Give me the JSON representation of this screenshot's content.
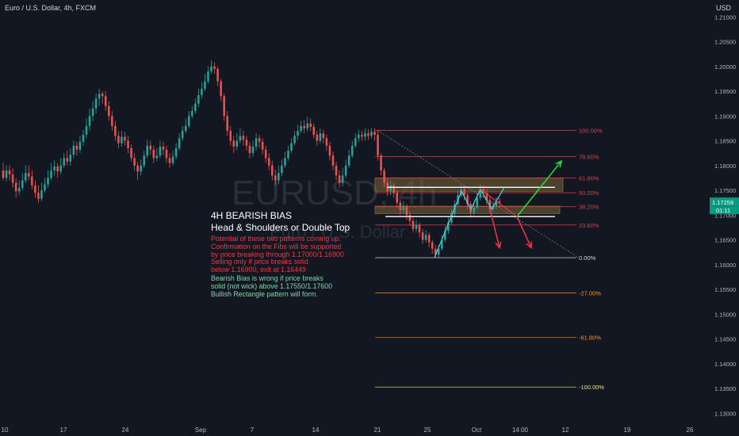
{
  "header": {
    "title": "Euro / U.S. Dollar, 4h, FXCM",
    "currency": "USD"
  },
  "watermark": {
    "symbol": "EURUSD, 4h",
    "name": "Euro / U.S. Dollar"
  },
  "annotations": {
    "title1": "4H BEARISH BIAS",
    "title2": "Head & Shoulders or Double Top",
    "red_lines": [
      "Potential of these two patterns coming up.",
      "Confirmation on the Fibs will be supported",
      "by price breaking through 1.17000/1.16900",
      "Selling only if price breaks solid",
      "below 1.16900, exit at 1.16449"
    ],
    "green_lines": [
      "Bearish Bias is wrong if price breaks",
      "solid (not wick) above 1.17550/1.17600",
      "Bullish Rectangle pattern will form."
    ]
  },
  "chart_data": {
    "type": "candlestick",
    "title": "Euro / U.S. Dollar, 4h, FXCM",
    "y_axis": {
      "ticks": [
        1.21,
        1.205,
        1.2,
        1.195,
        1.19,
        1.185,
        1.18,
        1.175,
        1.17,
        1.165,
        1.16,
        1.155,
        1.15,
        1.145,
        1.14,
        1.135,
        1.13
      ],
      "tick_labels": [
        "1.21000",
        "1.20500",
        "1.20000",
        "1.19500",
        "1.19000",
        "1.18500",
        "1.18000",
        "1.17500",
        "1.17000",
        "1.16500",
        "1.16000",
        "1.15500",
        "1.15000",
        "1.14500",
        "1.14000",
        "1.13500",
        "1.13000"
      ],
      "range": [
        1.1283,
        1.2134
      ]
    },
    "x_axis": {
      "tick_labels": [
        "10",
        "17",
        "24",
        "Sep",
        "7",
        "14",
        "21",
        "25",
        "Oct",
        "14:00",
        "12",
        "19",
        "26"
      ]
    },
    "last_price": "1.17259",
    "countdown": "01:11",
    "fib_levels": [
      {
        "label": "100.00%",
        "price": 1.1871,
        "color": "#f23645"
      },
      {
        "label": "78.60%",
        "price": 1.1818,
        "color": "#f23645"
      },
      {
        "label": "61.80%",
        "price": 1.1775,
        "color": "#f23645"
      },
      {
        "label": "50.00%",
        "price": 1.1745,
        "color": "#f23645"
      },
      {
        "label": "38.20%",
        "price": 1.1717,
        "color": "#f23645"
      },
      {
        "label": "23.60%",
        "price": 1.168,
        "color": "#f23645"
      },
      {
        "label": "0.00%",
        "price": 1.1614,
        "color": "#d1d4dc"
      },
      {
        "label": "-27.00%",
        "price": 1.1543,
        "color": "#f7931a"
      },
      {
        "label": "-61.80%",
        "price": 1.1453,
        "color": "#f7931a"
      },
      {
        "label": "-100.00%",
        "price": 1.1353,
        "color": "#e8e37a"
      }
    ],
    "support_resistance": [
      1.1756,
      1.1697
    ],
    "zones": [
      {
        "from": 1.1748,
        "to": 1.1775
      },
      {
        "from": 1.1703,
        "to": 1.1718
      }
    ],
    "candles": [
      [
        1.179,
        1.1775,
        1.1805,
        1.177
      ],
      [
        1.1775,
        1.179,
        1.18,
        1.1768
      ],
      [
        1.179,
        1.1782,
        1.18,
        1.177
      ],
      [
        1.1782,
        1.1765,
        1.1795,
        1.1755
      ],
      [
        1.1765,
        1.1748,
        1.1775,
        1.1735
      ],
      [
        1.1748,
        1.1755,
        1.177,
        1.174
      ],
      [
        1.1755,
        1.177,
        1.1785,
        1.175
      ],
      [
        1.177,
        1.1785,
        1.18,
        1.1765
      ],
      [
        1.1785,
        1.1778,
        1.18,
        1.177
      ],
      [
        1.1778,
        1.176,
        1.179,
        1.1752
      ],
      [
        1.176,
        1.1745,
        1.177,
        1.1735
      ],
      [
        1.1745,
        1.1733,
        1.176,
        1.1725
      ],
      [
        1.1733,
        1.175,
        1.1765,
        1.1728
      ],
      [
        1.175,
        1.1762,
        1.1775,
        1.1745
      ],
      [
        1.1762,
        1.1775,
        1.179,
        1.1755
      ],
      [
        1.1775,
        1.179,
        1.1805,
        1.177
      ],
      [
        1.179,
        1.1798,
        1.181,
        1.178
      ],
      [
        1.1798,
        1.1788,
        1.1805,
        1.1775
      ],
      [
        1.1788,
        1.18,
        1.1815,
        1.1782
      ],
      [
        1.18,
        1.1815,
        1.1825,
        1.1795
      ],
      [
        1.1815,
        1.1808,
        1.183,
        1.18
      ],
      [
        1.1808,
        1.1822,
        1.1835,
        1.18
      ],
      [
        1.1822,
        1.184,
        1.185,
        1.1815
      ],
      [
        1.184,
        1.1832,
        1.1848,
        1.182
      ],
      [
        1.1832,
        1.1848,
        1.186,
        1.1825
      ],
      [
        1.1848,
        1.1862,
        1.1872,
        1.184
      ],
      [
        1.1862,
        1.188,
        1.1895,
        1.1855
      ],
      [
        1.188,
        1.19,
        1.1915,
        1.187
      ],
      [
        1.19,
        1.1915,
        1.193,
        1.189
      ],
      [
        1.1915,
        1.1935,
        1.1945,
        1.1905
      ],
      [
        1.1935,
        1.1945,
        1.1955,
        1.192
      ],
      [
        1.1945,
        1.194,
        1.195,
        1.1925
      ],
      [
        1.194,
        1.192,
        1.195,
        1.191
      ],
      [
        1.192,
        1.19,
        1.193,
        1.189
      ],
      [
        1.19,
        1.188,
        1.191,
        1.187
      ],
      [
        1.188,
        1.186,
        1.189,
        1.185
      ],
      [
        1.186,
        1.1845,
        1.187,
        1.1835
      ],
      [
        1.1845,
        1.1858,
        1.187,
        1.1838
      ],
      [
        1.1858,
        1.185,
        1.1868,
        1.184
      ],
      [
        1.185,
        1.1835,
        1.186,
        1.1825
      ],
      [
        1.1835,
        1.1815,
        1.1842,
        1.1808
      ],
      [
        1.1815,
        1.18,
        1.1825,
        1.179
      ],
      [
        1.18,
        1.1788,
        1.1808,
        1.177
      ],
      [
        1.1788,
        1.18,
        1.1812,
        1.178
      ],
      [
        1.18,
        1.182,
        1.183,
        1.1795
      ],
      [
        1.182,
        1.184,
        1.1852,
        1.1815
      ],
      [
        1.184,
        1.1832,
        1.185,
        1.1822
      ],
      [
        1.1832,
        1.1815,
        1.184,
        1.1805
      ],
      [
        1.1815,
        1.182,
        1.1835,
        1.1808
      ],
      [
        1.182,
        1.1838,
        1.185,
        1.1815
      ],
      [
        1.1838,
        1.1832,
        1.1848,
        1.182
      ],
      [
        1.1832,
        1.1815,
        1.184,
        1.1805
      ],
      [
        1.1815,
        1.1805,
        1.1825,
        1.1795
      ],
      [
        1.1805,
        1.1818,
        1.183,
        1.18
      ],
      [
        1.1818,
        1.1835,
        1.1845,
        1.1812
      ],
      [
        1.1835,
        1.1855,
        1.1865,
        1.183
      ],
      [
        1.1855,
        1.187,
        1.188,
        1.185
      ],
      [
        1.187,
        1.188,
        1.1895,
        1.1865
      ],
      [
        1.188,
        1.19,
        1.191,
        1.1875
      ],
      [
        1.19,
        1.191,
        1.192,
        1.1895
      ],
      [
        1.191,
        1.1925,
        1.1935,
        1.1905
      ],
      [
        1.1925,
        1.1942,
        1.1955,
        1.1918
      ],
      [
        1.1942,
        1.1955,
        1.1968,
        1.1935
      ],
      [
        1.1955,
        1.197,
        1.1985,
        1.195
      ],
      [
        1.197,
        1.199,
        1.2,
        1.1965
      ],
      [
        1.199,
        1.2,
        1.2012,
        1.1985
      ],
      [
        1.2,
        1.1995,
        1.2008,
        1.1985
      ],
      [
        1.1995,
        1.197,
        1.2,
        1.196
      ],
      [
        1.197,
        1.194,
        1.1975,
        1.193
      ],
      [
        1.194,
        1.19,
        1.1945,
        1.189
      ],
      [
        1.19,
        1.187,
        1.191,
        1.186
      ],
      [
        1.187,
        1.185,
        1.188,
        1.184
      ],
      [
        1.185,
        1.1838,
        1.186,
        1.1825
      ],
      [
        1.1838,
        1.185,
        1.1865,
        1.183
      ],
      [
        1.185,
        1.186,
        1.1875,
        1.1845
      ],
      [
        1.186,
        1.1852,
        1.187,
        1.184
      ],
      [
        1.1852,
        1.184,
        1.186,
        1.183
      ],
      [
        1.184,
        1.1825,
        1.1848,
        1.1815
      ],
      [
        1.1825,
        1.1838,
        1.185,
        1.1818
      ],
      [
        1.1838,
        1.1855,
        1.1865,
        1.183
      ],
      [
        1.1855,
        1.1848,
        1.1862,
        1.1835
      ],
      [
        1.1848,
        1.1832,
        1.1855,
        1.1822
      ],
      [
        1.1832,
        1.1815,
        1.184,
        1.1805
      ],
      [
        1.1815,
        1.18,
        1.1825,
        1.179
      ],
      [
        1.18,
        1.178,
        1.181,
        1.177
      ],
      [
        1.178,
        1.177,
        1.1792,
        1.176
      ],
      [
        1.177,
        1.1785,
        1.18,
        1.1762
      ],
      [
        1.1785,
        1.18,
        1.1812,
        1.1778
      ],
      [
        1.18,
        1.1815,
        1.1828,
        1.1795
      ],
      [
        1.1815,
        1.183,
        1.184,
        1.181
      ],
      [
        1.183,
        1.1845,
        1.1855,
        1.1825
      ],
      [
        1.1845,
        1.186,
        1.187,
        1.184
      ],
      [
        1.186,
        1.187,
        1.1882,
        1.1852
      ],
      [
        1.187,
        1.188,
        1.189,
        1.1865
      ],
      [
        1.188,
        1.1875,
        1.1892,
        1.1865
      ],
      [
        1.1875,
        1.1885,
        1.1898,
        1.1868
      ],
      [
        1.1885,
        1.1878,
        1.1895,
        1.187
      ],
      [
        1.1878,
        1.1862,
        1.1885,
        1.1855
      ],
      [
        1.1862,
        1.185,
        1.187,
        1.184
      ],
      [
        1.185,
        1.1865,
        1.1875,
        1.1845
      ],
      [
        1.1865,
        1.1855,
        1.1872,
        1.1845
      ],
      [
        1.1855,
        1.184,
        1.1862,
        1.183
      ],
      [
        1.184,
        1.182,
        1.1848,
        1.181
      ],
      [
        1.182,
        1.18,
        1.1828,
        1.179
      ],
      [
        1.18,
        1.178,
        1.1808,
        1.177
      ],
      [
        1.178,
        1.1765,
        1.179,
        1.1755
      ],
      [
        1.1765,
        1.178,
        1.1795,
        1.1758
      ],
      [
        1.178,
        1.18,
        1.1812,
        1.1775
      ],
      [
        1.18,
        1.182,
        1.1832,
        1.1795
      ],
      [
        1.182,
        1.184,
        1.185,
        1.1815
      ],
      [
        1.184,
        1.1855,
        1.1865,
        1.1835
      ],
      [
        1.1855,
        1.1862,
        1.1872,
        1.1848
      ],
      [
        1.1862,
        1.1858,
        1.187,
        1.185
      ],
      [
        1.1858,
        1.1865,
        1.1875,
        1.185
      ],
      [
        1.1865,
        1.186,
        1.1873,
        1.1852
      ],
      [
        1.186,
        1.1868,
        1.1875,
        1.1855
      ],
      [
        1.1868,
        1.1862,
        1.1875,
        1.185
      ],
      [
        1.1862,
        1.182,
        1.187,
        1.181
      ],
      [
        1.182,
        1.179,
        1.1825,
        1.178
      ],
      [
        1.179,
        1.1765,
        1.1795,
        1.1755
      ],
      [
        1.1765,
        1.1748,
        1.1775,
        1.1738
      ],
      [
        1.1748,
        1.176,
        1.177,
        1.174
      ],
      [
        1.176,
        1.1745,
        1.1765,
        1.1735
      ],
      [
        1.1745,
        1.1725,
        1.175,
        1.1715
      ],
      [
        1.1725,
        1.171,
        1.1732,
        1.17
      ],
      [
        1.171,
        1.1718,
        1.1728,
        1.1702
      ],
      [
        1.1718,
        1.17,
        1.1722,
        1.169
      ],
      [
        1.17,
        1.1688,
        1.1708,
        1.1678
      ],
      [
        1.1688,
        1.1672,
        1.1695,
        1.1665
      ],
      [
        1.1672,
        1.168,
        1.169,
        1.1665
      ],
      [
        1.168,
        1.1665,
        1.1685,
        1.1655
      ],
      [
        1.1665,
        1.165,
        1.1672,
        1.1642
      ],
      [
        1.165,
        1.166,
        1.167,
        1.1645
      ],
      [
        1.166,
        1.1645,
        1.1665,
        1.1635
      ],
      [
        1.1645,
        1.1632,
        1.165,
        1.1622
      ],
      [
        1.1632,
        1.162,
        1.164,
        1.1614
      ],
      [
        1.162,
        1.1632,
        1.164,
        1.1615
      ],
      [
        1.1632,
        1.165,
        1.166,
        1.1628
      ],
      [
        1.165,
        1.1668,
        1.1678,
        1.1645
      ],
      [
        1.1668,
        1.1685,
        1.1695,
        1.1662
      ],
      [
        1.1685,
        1.1702,
        1.1712,
        1.168
      ],
      [
        1.1702,
        1.1722,
        1.173,
        1.1698
      ],
      [
        1.1722,
        1.174,
        1.175,
        1.1718
      ],
      [
        1.174,
        1.1752,
        1.1762,
        1.1735
      ],
      [
        1.1752,
        1.174,
        1.176,
        1.173
      ],
      [
        1.174,
        1.1722,
        1.1745,
        1.1712
      ],
      [
        1.1722,
        1.1705,
        1.1728,
        1.1695
      ],
      [
        1.1705,
        1.1715,
        1.1725,
        1.17
      ],
      [
        1.1715,
        1.1735,
        1.1745,
        1.171
      ],
      [
        1.1735,
        1.1752,
        1.1762,
        1.173
      ],
      [
        1.1752,
        1.1745,
        1.176,
        1.1735
      ],
      [
        1.1745,
        1.173,
        1.1752,
        1.172
      ],
      [
        1.173,
        1.1712,
        1.1738,
        1.1705
      ],
      [
        1.1712,
        1.1718,
        1.1728,
        1.1705
      ],
      [
        1.1718,
        1.1728,
        1.1736,
        1.1712
      ],
      [
        1.1728,
        1.1725,
        1.1735,
        1.1716
      ]
    ]
  }
}
